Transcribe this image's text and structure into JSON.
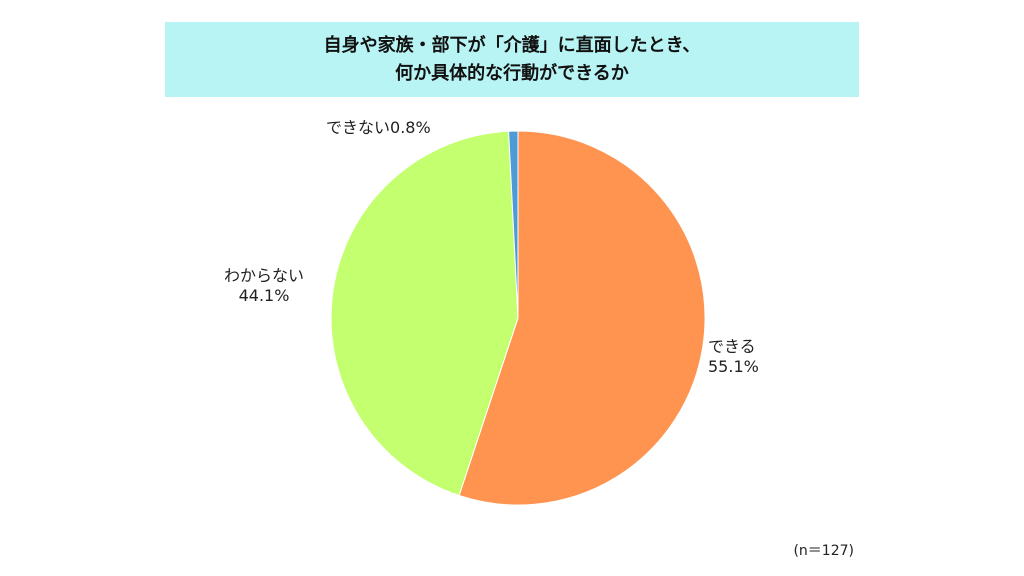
{
  "chart_data": {
    "type": "pie",
    "title_lines": [
      "自身や家族・部下が「介護」に直面したとき、",
      "何か具体的な行動ができるか"
    ],
    "slices": [
      {
        "label": "できる",
        "value": 55.1,
        "value_text": "55.1%",
        "color": "#ff9350"
      },
      {
        "label": "わからない",
        "value": 44.1,
        "value_text": "44.1%",
        "color": "#c3ff6f"
      },
      {
        "label": "できない",
        "value": 0.8,
        "value_text": "0.8%",
        "color": "#4d9bd6"
      }
    ],
    "note": "(n＝127)"
  }
}
